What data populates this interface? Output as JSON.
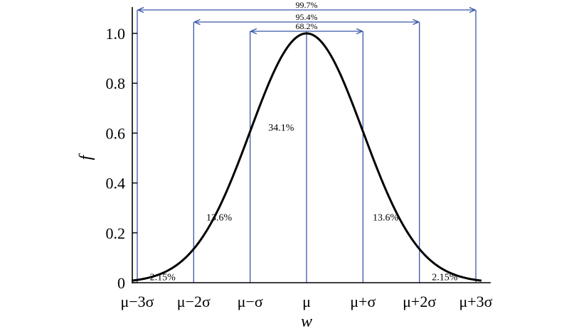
{
  "chart_data": {
    "type": "line",
    "xlabel": "w",
    "ylabel": "f",
    "xlim": [
      -3,
      3
    ],
    "ylim": [
      0,
      1
    ],
    "y_ticks": [
      "0",
      "0.2",
      "0.4",
      "0.6",
      "0.8",
      "1.0"
    ],
    "y_tick_values": [
      0,
      0.2,
      0.4,
      0.6,
      0.8,
      1.0
    ],
    "x_ticks": [
      {
        "value": -3,
        "label": "μ−3σ"
      },
      {
        "value": -2,
        "label": "μ−2σ"
      },
      {
        "value": -1,
        "label": "μ−σ"
      },
      {
        "value": 0,
        "label": "μ"
      },
      {
        "value": 1,
        "label": "μ+σ"
      },
      {
        "value": 2,
        "label": "μ+2σ"
      },
      {
        "value": 3,
        "label": "μ+3σ"
      }
    ],
    "curve": {
      "x": [
        -3.0,
        -2.5,
        -2.0,
        -1.5,
        -1.0,
        -0.5,
        0.0,
        0.5,
        1.0,
        1.5,
        2.0,
        2.5,
        3.0
      ],
      "y": [
        0.011,
        0.044,
        0.135,
        0.325,
        0.607,
        0.882,
        1.0,
        0.882,
        0.607,
        0.325,
        0.135,
        0.044,
        0.011
      ]
    },
    "vertical_lines_x": [
      -3,
      -2,
      -1,
      0,
      1,
      2,
      3
    ],
    "region_labels": [
      {
        "text": "2.15%",
        "x": -2.55,
        "y": 0.01
      },
      {
        "text": "13.6%",
        "x": -1.55,
        "y": 0.25
      },
      {
        "text": "34.1%",
        "x": -0.45,
        "y": 0.61
      },
      {
        "text": "13.6%",
        "x": 1.4,
        "y": 0.25
      },
      {
        "text": "2.15%",
        "x": 2.45,
        "y": 0.01
      }
    ],
    "spans": [
      {
        "text": "99.7%",
        "from": -3,
        "to": 3,
        "y": 1.11
      },
      {
        "text": "95.4%",
        "from": -2,
        "to": 2,
        "y": 1.06
      },
      {
        "text": "68.2%",
        "from": -1,
        "to": 1,
        "y": 1.01
      }
    ]
  }
}
